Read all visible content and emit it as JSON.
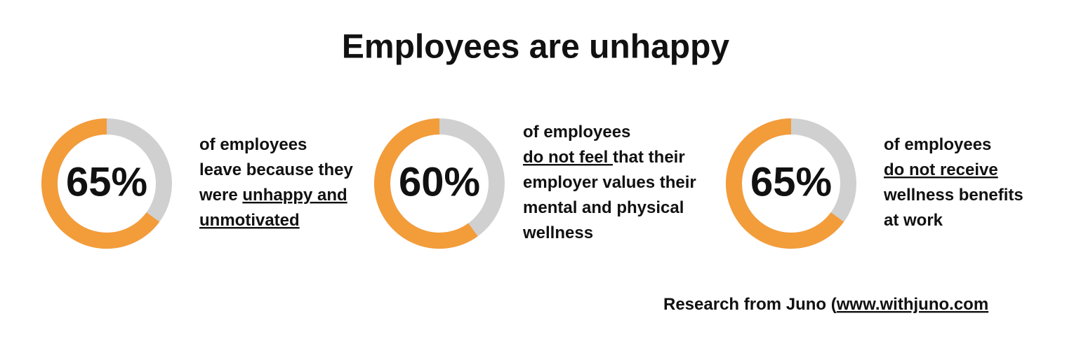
{
  "title": "Employees are unhappy",
  "source": [
    {
      "text": "Research from Juno (",
      "underline": false
    },
    {
      "text": "www.withjuno.com",
      "underline": true
    }
  ],
  "chart_data": [
    {
      "type": "donut",
      "values": [
        65
      ],
      "value_labels": [
        "65%"
      ],
      "color": "#f39c3a",
      "track_color": "#d0d0d0",
      "caption": [
        [
          {
            "text": "of employees",
            "underline": false
          }
        ],
        [
          {
            "text": "leave because they",
            "underline": false
          }
        ],
        [
          {
            "text": "were ",
            "underline": false
          },
          {
            "text": "unhappy and",
            "underline": true
          }
        ],
        [
          {
            "text": "unmotivated",
            "underline": true
          }
        ]
      ]
    },
    {
      "type": "donut",
      "values": [
        60
      ],
      "value_labels": [
        "60%"
      ],
      "color": "#f39c3a",
      "track_color": "#d0d0d0",
      "caption": [
        [
          {
            "text": "of employees",
            "underline": false
          }
        ],
        [
          {
            "text": "do not feel ",
            "underline": true
          },
          {
            "text": "that their",
            "underline": false
          }
        ],
        [
          {
            "text": "employer values their",
            "underline": false
          }
        ],
        [
          {
            "text": "mental and physical",
            "underline": false
          }
        ],
        [
          {
            "text": "wellness",
            "underline": false
          }
        ]
      ]
    },
    {
      "type": "donut",
      "values": [
        65
      ],
      "value_labels": [
        "65%"
      ],
      "color": "#f39c3a",
      "track_color": "#d0d0d0",
      "caption": [
        [
          {
            "text": "of employees",
            "underline": false
          }
        ],
        [
          {
            "text": "do not receive",
            "underline": true
          }
        ],
        [
          {
            "text": "wellness benefits",
            "underline": false
          }
        ],
        [
          {
            "text": "at work",
            "underline": false
          }
        ]
      ]
    }
  ]
}
